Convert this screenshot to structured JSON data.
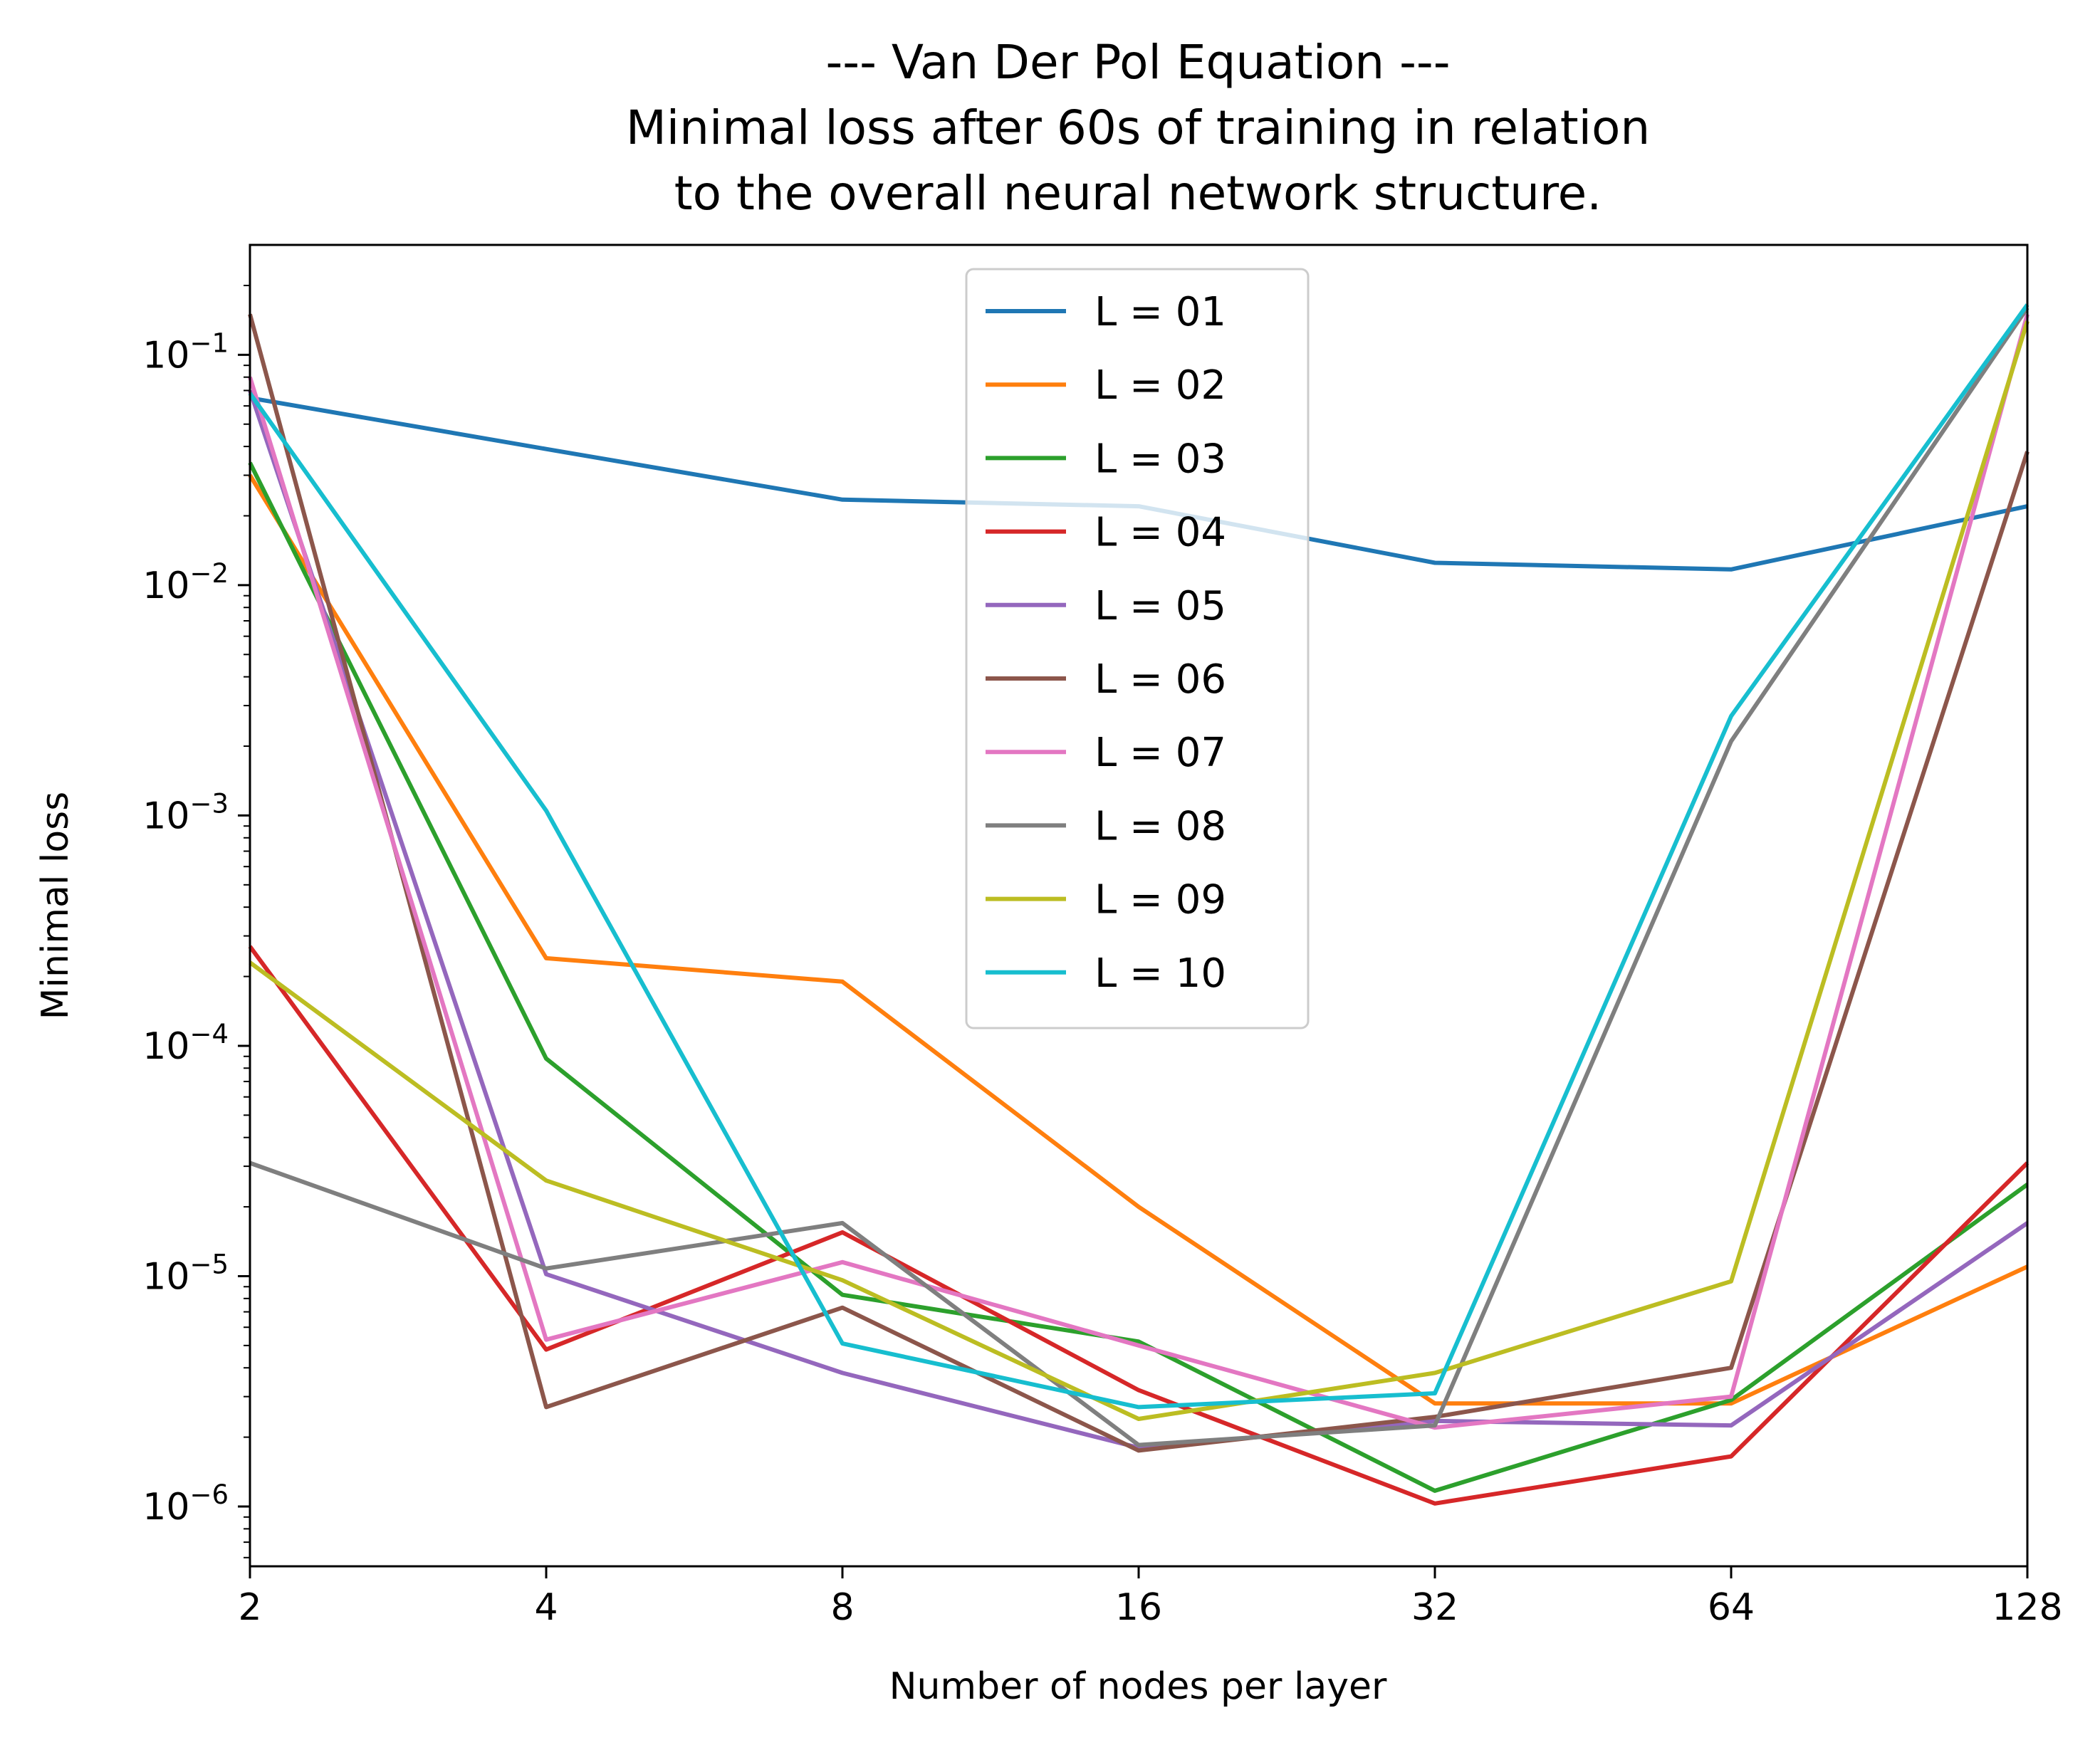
{
  "chart_data": {
    "type": "line",
    "title_lines": [
      "--- Van Der Pol Equation ---",
      "Minimal loss after 60s of training in relation",
      "to the overall neural network structure."
    ],
    "xlabel": "Number of nodes per layer",
    "ylabel": "Minimal loss",
    "x_scale": "log2",
    "y_scale": "log10",
    "x": [
      2,
      4,
      8,
      16,
      32,
      64,
      128
    ],
    "x_tick_labels": [
      "2",
      "4",
      "8",
      "16",
      "32",
      "64",
      "128"
    ],
    "xlim": [
      2,
      128
    ],
    "ylim": [
      5.5e-07,
      0.3
    ],
    "y_ticks": [
      {
        "value": 1e-06,
        "base": "10",
        "exp": "−6"
      },
      {
        "value": 1e-05,
        "base": "10",
        "exp": "−5"
      },
      {
        "value": 0.0001,
        "base": "10",
        "exp": "−4"
      },
      {
        "value": 0.001,
        "base": "10",
        "exp": "−3"
      },
      {
        "value": 0.01,
        "base": "10",
        "exp": "−2"
      },
      {
        "value": 0.1,
        "base": "10",
        "exp": "−1"
      }
    ],
    "grid": false,
    "legend_position": "upper center",
    "series": [
      {
        "name": "L = 01",
        "color": "#1f77b4",
        "values": [
          0.065,
          0.039,
          0.0235,
          0.022,
          0.0125,
          0.0117,
          0.022
        ]
      },
      {
        "name": "L = 02",
        "color": "#ff7f0e",
        "values": [
          0.03,
          0.00024,
          0.00019,
          2e-05,
          2.8e-06,
          2.8e-06,
          1.1e-05
        ]
      },
      {
        "name": "L = 03",
        "color": "#2ca02c",
        "values": [
          0.034,
          8.8e-05,
          8.3e-06,
          5.2e-06,
          1.17e-06,
          2.9e-06,
          2.5e-05
        ]
      },
      {
        "name": "L = 04",
        "color": "#d62728",
        "values": [
          0.00027,
          4.8e-06,
          1.55e-05,
          3.2e-06,
          1.03e-06,
          1.65e-06,
          3.1e-05
        ]
      },
      {
        "name": "L = 05",
        "color": "#9467bd",
        "values": [
          0.07,
          1.02e-05,
          3.8e-06,
          1.8e-06,
          2.35e-06,
          2.25e-06,
          1.7e-05
        ]
      },
      {
        "name": "L = 06",
        "color": "#8c564b",
        "values": [
          0.15,
          2.7e-06,
          7.3e-06,
          1.75e-06,
          2.45e-06,
          4e-06,
          0.038
        ]
      },
      {
        "name": "L = 07",
        "color": "#e377c2",
        "values": [
          0.08,
          5.3e-06,
          1.15e-05,
          5e-06,
          2.2e-06,
          3e-06,
          0.15
        ]
      },
      {
        "name": "L = 08",
        "color": "#7f7f7f",
        "values": [
          3.1e-05,
          1.08e-05,
          1.7e-05,
          1.85e-06,
          2.25e-06,
          0.0021,
          0.16
        ]
      },
      {
        "name": "L = 09",
        "color": "#bcbd22",
        "values": [
          0.00023,
          2.6e-05,
          9.6e-06,
          2.4e-06,
          3.8e-06,
          9.5e-06,
          0.14
        ]
      },
      {
        "name": "L = 10",
        "color": "#17becf",
        "values": [
          0.068,
          0.00105,
          5.1e-06,
          2.7e-06,
          3.1e-06,
          0.0027,
          0.165
        ]
      }
    ]
  }
}
